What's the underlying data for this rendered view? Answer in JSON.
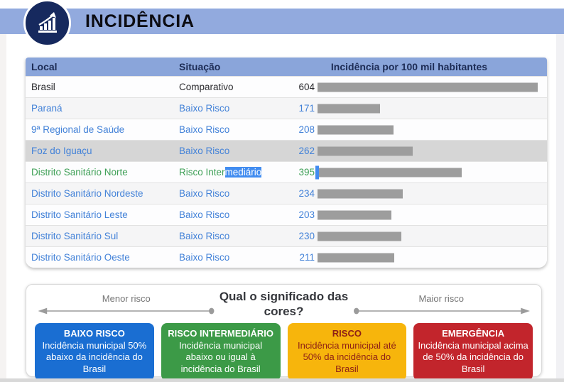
{
  "header": {
    "title": "INCIDÊNCIA",
    "icon": "bar-chart-growth-icon"
  },
  "table": {
    "columns": [
      "Local",
      "Situação",
      "Incidência por 100 mil habitantes"
    ],
    "rows": [
      {
        "local": "Brasil",
        "situacao": "Comparativo",
        "value": 604,
        "color": "black",
        "highlighted": false
      },
      {
        "local": "Paraná",
        "situacao": "Baixo Risco",
        "value": 171,
        "color": "blue",
        "highlighted": false
      },
      {
        "local": "9ª Regional de Saúde",
        "situacao": "Baixo Risco",
        "value": 208,
        "color": "blue",
        "highlighted": false
      },
      {
        "local": "Foz do Iguaçu",
        "situacao": "Baixo Risco",
        "value": 262,
        "color": "blue",
        "highlighted": true
      },
      {
        "local": "Distrito Sanitário Norte",
        "situacao_prefix": "Risco Inter",
        "situacao_selected": "mediário",
        "value": 395,
        "color": "green",
        "highlighted": false
      },
      {
        "local": "Distrito Sanitário Nordeste",
        "situacao": "Baixo Risco",
        "value": 234,
        "color": "blue",
        "highlighted": false
      },
      {
        "local": "Distrito Sanitário Leste",
        "situacao": "Baixo Risco",
        "value": 203,
        "color": "blue",
        "highlighted": false
      },
      {
        "local": "Distrito Sanitário Sul",
        "situacao": "Baixo Risco",
        "value": 230,
        "color": "blue",
        "highlighted": false
      },
      {
        "local": "Distrito Sanitário Oeste",
        "situacao": "Baixo Risco",
        "value": 211,
        "color": "blue",
        "highlighted": false
      }
    ],
    "bar_color": "#9d9d9d",
    "selection_color": "#418cf0"
  },
  "legend": {
    "title": "Qual o significado das cores?",
    "left_label": "Menor risco",
    "right_label": "Maior risco",
    "boxes": [
      {
        "title": "BAIXO RISCO",
        "description": "Incidência municipal 50% abaixo da incidência do Brasil",
        "color": "#1a6ed2",
        "text_color": "#ffffff"
      },
      {
        "title": "RISCO INTERMEDIÁRIO",
        "description": "Incidência municipal abaixo ou igual à incidência do Brasil",
        "color": "#3c9a47",
        "text_color": "#ffffff"
      },
      {
        "title": "RISCO",
        "description": "Incidência municipal até 50% da incidência do Brasil",
        "color": "#f7b50c",
        "text_color": "#8e2016"
      },
      {
        "title": "EMERGÊNCIA",
        "description": "Incidência municipal acima de 50% da incidência do Brasil",
        "color": "#c2252c",
        "text_color": "#ffffff"
      }
    ]
  },
  "chart_data": {
    "type": "bar",
    "orientation": "horizontal",
    "title": "Incidência por 100 mil habitantes",
    "categories": [
      "Brasil",
      "Paraná",
      "9ª Regional de Saúde",
      "Foz do Iguaçu",
      "Distrito Sanitário Norte",
      "Distrito Sanitário Nordeste",
      "Distrito Sanitário Leste",
      "Distrito Sanitário Sul",
      "Distrito Sanitário Oeste"
    ],
    "values": [
      604,
      171,
      208,
      262,
      395,
      234,
      203,
      230,
      211
    ],
    "situations": [
      "Comparativo",
      "Baixo Risco",
      "Baixo Risco",
      "Baixo Risco",
      "Risco Intermediário",
      "Baixo Risco",
      "Baixo Risco",
      "Baixo Risco",
      "Baixo Risco"
    ],
    "xlim": [
      0,
      604
    ],
    "grid": false,
    "legend_position": "bottom"
  }
}
